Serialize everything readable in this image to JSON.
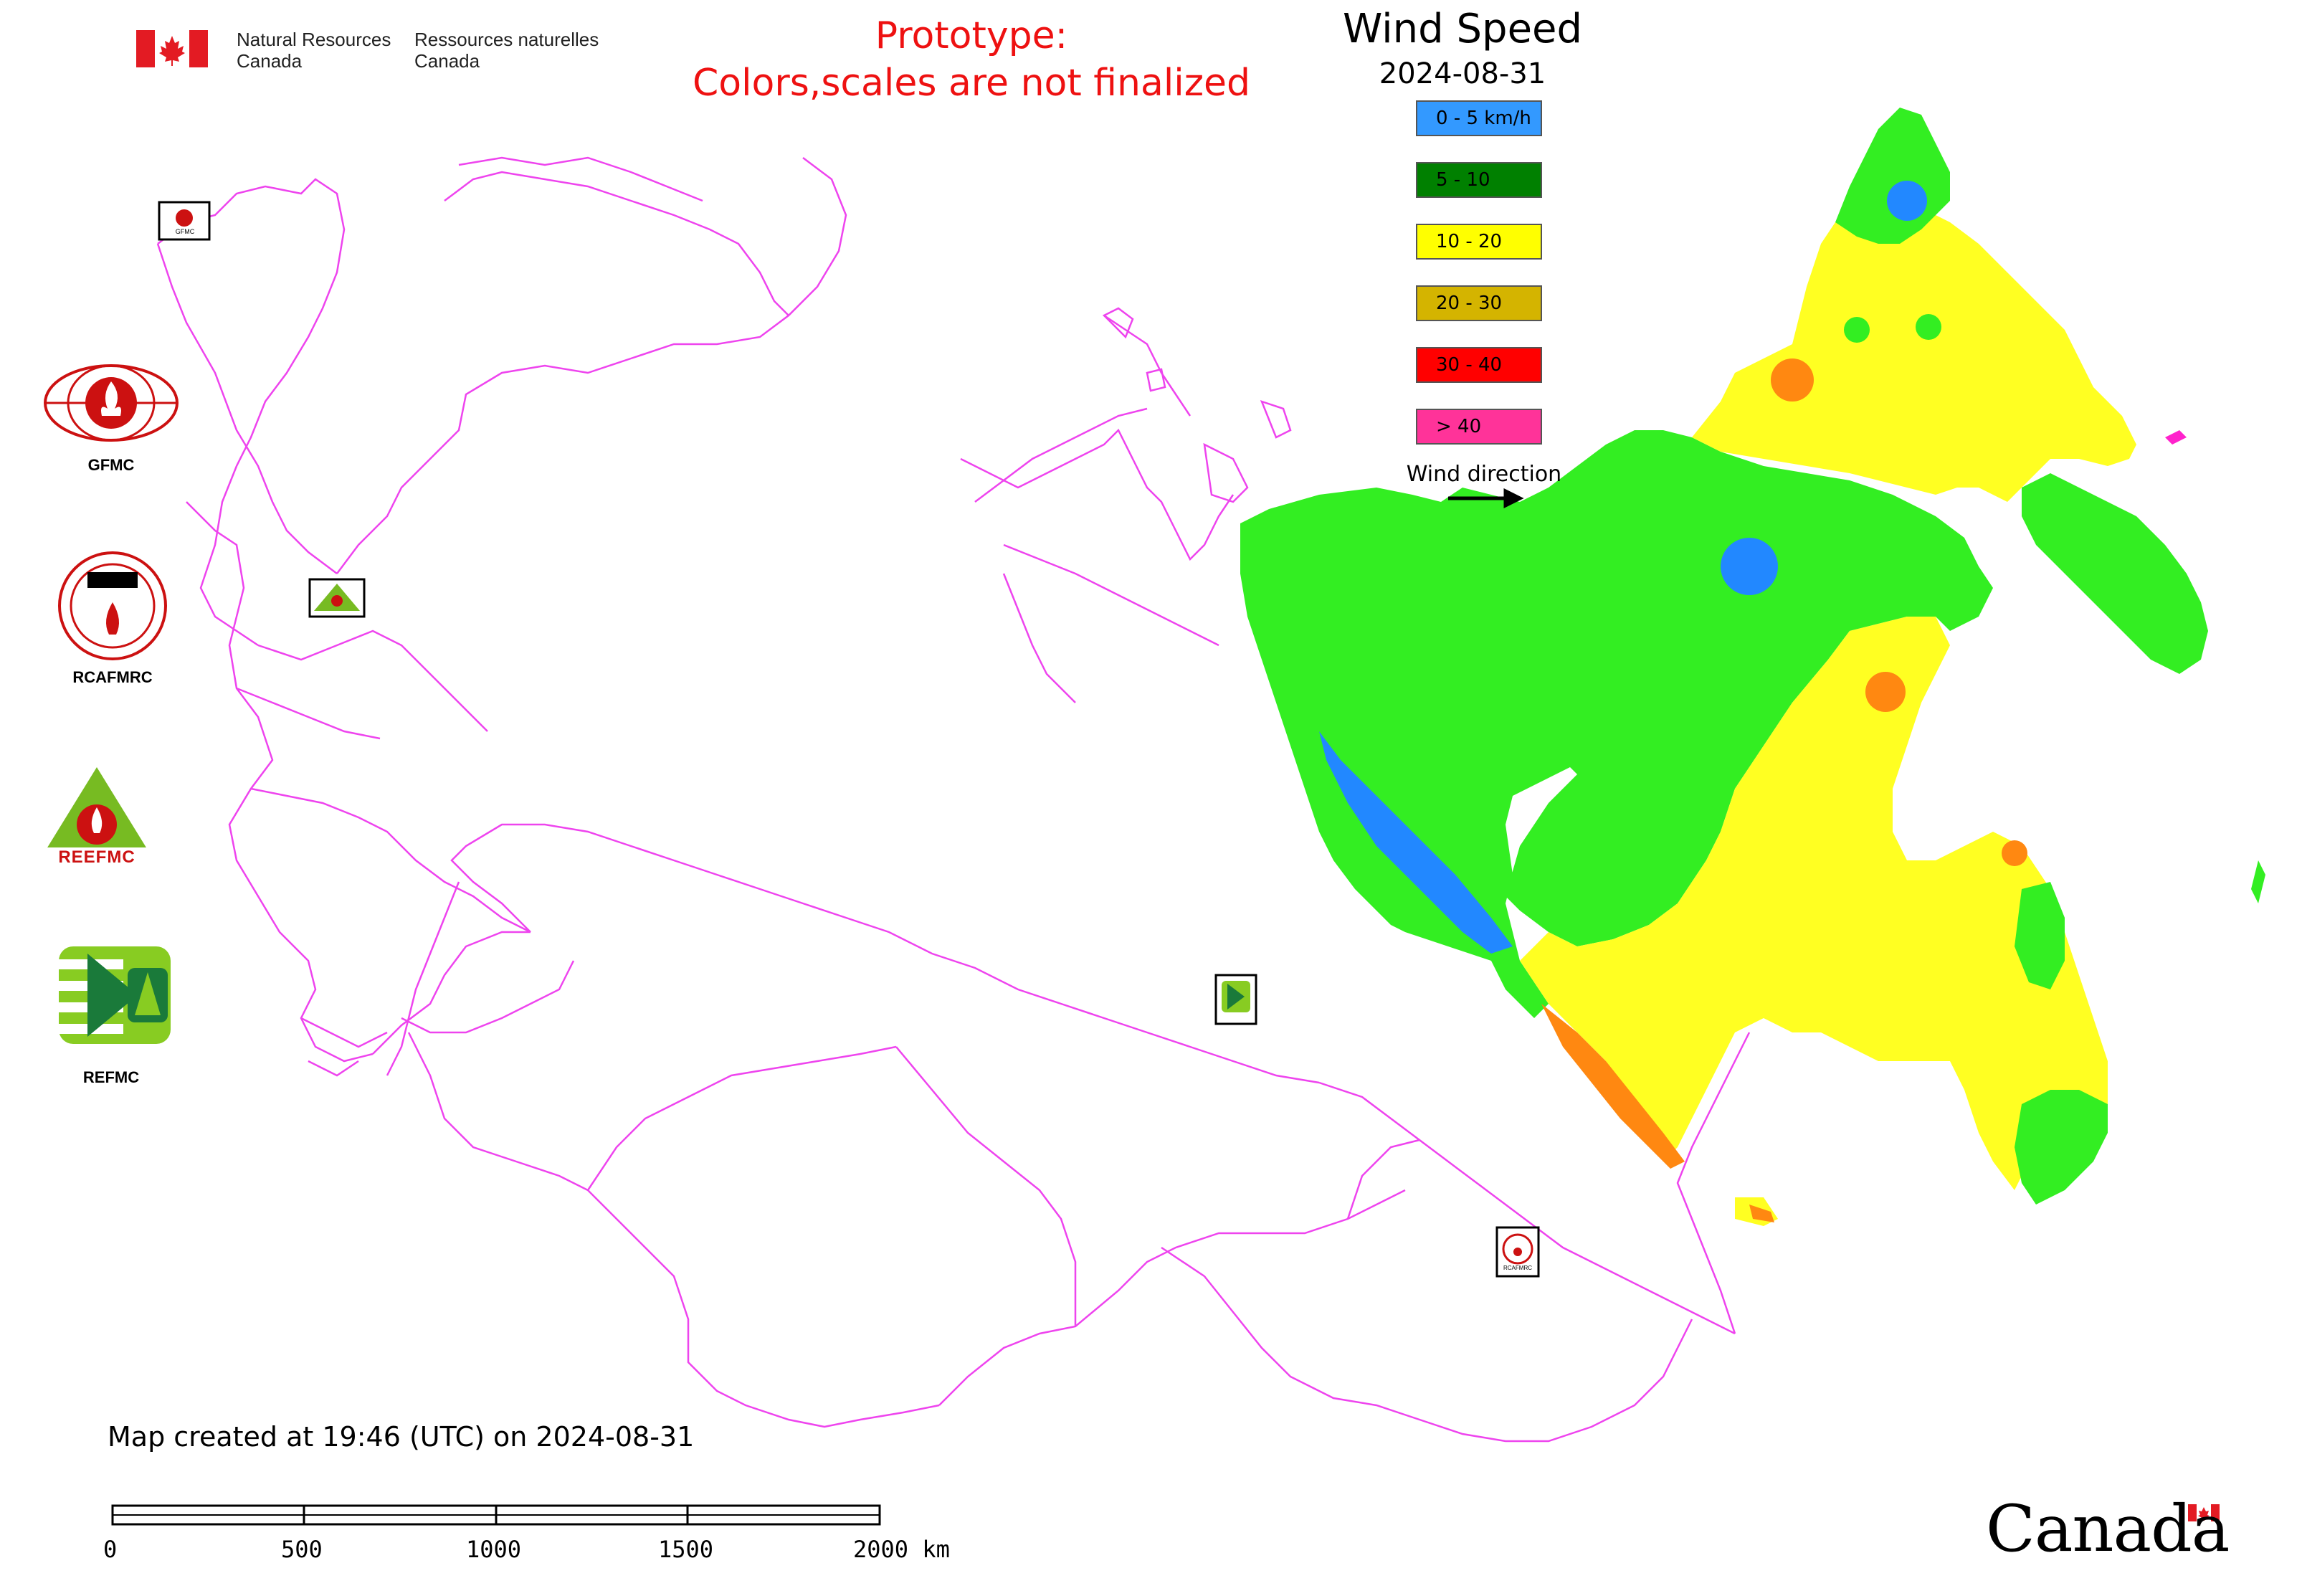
{
  "header": {
    "agency_en_line1": "Natural Resources",
    "agency_en_line2": "Canada",
    "agency_fr_line1": "Ressources naturelles",
    "agency_fr_line2": "Canada",
    "prototype_line1": "Prototype:",
    "prototype_line2": "Colors,scales are not finalized"
  },
  "legend": {
    "title": "Wind Speed",
    "date": "2024-08-31",
    "items": [
      {
        "label": "0 - 5 km/h",
        "color": "#3399ff"
      },
      {
        "label": "5 - 10",
        "color": "#008000"
      },
      {
        "label": "10 - 20",
        "color": "#ffff00"
      },
      {
        "label": "20 - 30",
        "color": "#d4b400"
      },
      {
        "label": "30 - 40",
        "color": "#ff0000"
      },
      {
        "label": "> 40",
        "color": "#ff3399"
      }
    ],
    "wind_direction_label": "Wind direction"
  },
  "logos": {
    "gfmc": "GFMC",
    "rcafmrc": "RCAFMRC",
    "reefmc_logo": "REEFMC",
    "refmc": "REFMC",
    "small_gfmc": "GFMC",
    "small_rcafmrc": "RCAFMRC"
  },
  "map": {
    "border_color": "#ee44ee",
    "fill_colors": {
      "light_green": "#33ee22",
      "yellow": "#ffff22",
      "blue": "#2288ff",
      "orange": "#ff8811"
    }
  },
  "footer": {
    "created_note": "Map created at 19:46 (UTC) on 2024-08-31",
    "scale_labels": [
      "0",
      "500",
      "1000",
      "1500",
      "2000 km"
    ],
    "wordmark": "Canada"
  }
}
